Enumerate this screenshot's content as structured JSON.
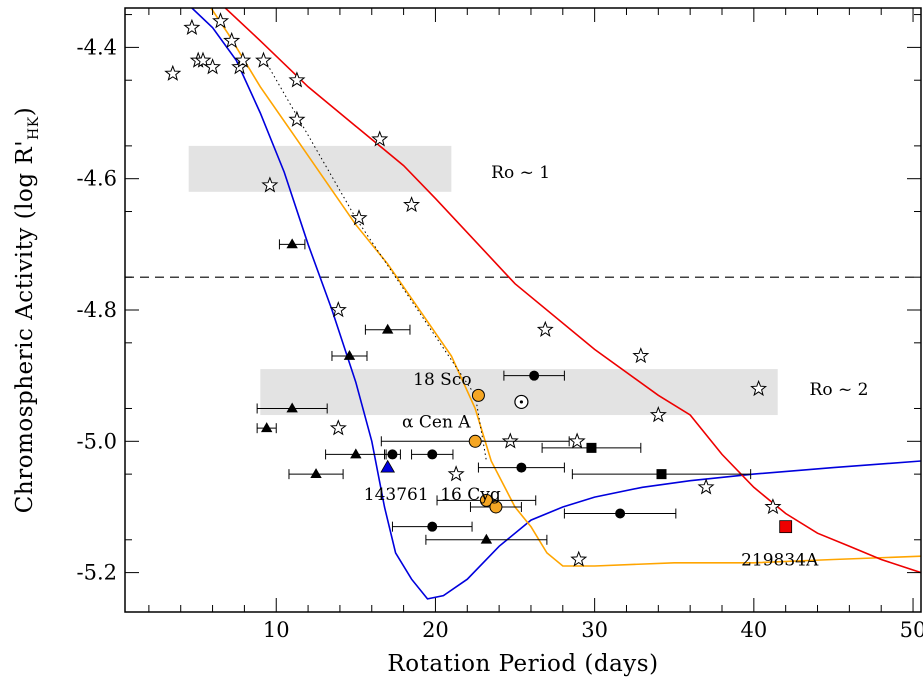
{
  "chart_data": {
    "type": "scatter",
    "xlabel": "Rotation Period (days)",
    "ylabel_main": "Chromospheric Activity (log R'",
    "ylabel_sub": "HK",
    "ylabel_close": ")",
    "xlim": [
      0.5,
      50.5
    ],
    "ylim": [
      -5.26,
      -4.34
    ],
    "x_ticks": [
      10,
      20,
      30,
      40,
      50
    ],
    "y_ticks": [
      -5.2,
      -5.0,
      -4.8,
      -4.6,
      -4.4
    ],
    "x_tick_labels": [
      "10",
      "20",
      "30",
      "40",
      "50"
    ],
    "y_tick_labels": [
      "-5.2",
      "-5.0",
      "-4.8",
      "-4.6",
      "-4.4"
    ],
    "dashed_line_y": -4.75,
    "colors": {
      "blue": "#0000dd",
      "orange": "#ffa500",
      "red": "#ee0000",
      "band": "#e3e3e3",
      "marker_orange": "#f5a623"
    },
    "bands": [
      {
        "label": "Ro ~ 1",
        "x": [
          4.5,
          21
        ],
        "y": [
          -4.62,
          -4.55
        ]
      },
      {
        "label": "Ro ~ 2",
        "x": [
          9,
          41.5
        ],
        "y": [
          -4.96,
          -4.89
        ]
      }
    ],
    "curves": [
      {
        "color": "blue",
        "points": [
          [
            4.7,
            -4.34
          ],
          [
            6,
            -4.37
          ],
          [
            7.5,
            -4.42
          ],
          [
            9,
            -4.5
          ],
          [
            10.5,
            -4.59
          ],
          [
            12,
            -4.7
          ],
          [
            13.5,
            -4.8
          ],
          [
            15,
            -4.91
          ],
          [
            16,
            -5.0
          ],
          [
            16.8,
            -5.1
          ],
          [
            17.5,
            -5.17
          ],
          [
            18.5,
            -5.21
          ],
          [
            19.5,
            -5.24
          ],
          [
            20.5,
            -5.235
          ],
          [
            22,
            -5.21
          ],
          [
            24,
            -5.16
          ],
          [
            26,
            -5.12
          ],
          [
            28,
            -5.1
          ],
          [
            30,
            -5.085
          ],
          [
            33,
            -5.07
          ],
          [
            36,
            -5.06
          ],
          [
            40,
            -5.05
          ],
          [
            45,
            -5.04
          ],
          [
            50.5,
            -5.03
          ]
        ]
      },
      {
        "color": "orange",
        "points": [
          [
            5.9,
            -4.34
          ],
          [
            7,
            -4.38
          ],
          [
            9,
            -4.46
          ],
          [
            11,
            -4.53
          ],
          [
            13,
            -4.6
          ],
          [
            15,
            -4.67
          ],
          [
            17,
            -4.73
          ],
          [
            19,
            -4.8
          ],
          [
            21,
            -4.87
          ],
          [
            22.5,
            -4.95
          ],
          [
            23.5,
            -5.03
          ],
          [
            25,
            -5.1
          ],
          [
            26,
            -5.13
          ],
          [
            27,
            -5.17
          ],
          [
            28,
            -5.19
          ],
          [
            30,
            -5.19
          ],
          [
            35,
            -5.185
          ],
          [
            40,
            -5.185
          ],
          [
            45,
            -5.18
          ],
          [
            50.5,
            -5.175
          ]
        ]
      },
      {
        "color": "red",
        "points": [
          [
            6.8,
            -4.34
          ],
          [
            9,
            -4.39
          ],
          [
            12,
            -4.46
          ],
          [
            15,
            -4.52
          ],
          [
            18,
            -4.58
          ],
          [
            20,
            -4.63
          ],
          [
            25,
            -4.76
          ],
          [
            30,
            -4.86
          ],
          [
            34,
            -4.93
          ],
          [
            36,
            -4.96
          ],
          [
            38,
            -5.02
          ],
          [
            40,
            -5.07
          ],
          [
            42,
            -5.11
          ],
          [
            44,
            -5.14
          ],
          [
            46,
            -5.16
          ],
          [
            48,
            -5.18
          ],
          [
            50.5,
            -5.2
          ]
        ]
      }
    ],
    "dotted_line": [
      [
        9.3,
        -4.42
      ],
      [
        15,
        -4.66
      ],
      [
        20,
        -4.84
      ],
      [
        22.5,
        -4.93
      ],
      [
        23.2,
        -5.03
      ]
    ],
    "stars": [
      [
        3.5,
        -4.44
      ],
      [
        4.7,
        -4.37
      ],
      [
        5.1,
        -4.42
      ],
      [
        5.4,
        -4.42
      ],
      [
        6,
        -4.43
      ],
      [
        6.5,
        -4.36
      ],
      [
        7.2,
        -4.39
      ],
      [
        7.7,
        -4.43
      ],
      [
        7.9,
        -4.42
      ],
      [
        9.2,
        -4.42
      ],
      [
        9.6,
        -4.61
      ],
      [
        11.3,
        -4.45
      ],
      [
        11.3,
        -4.51
      ],
      [
        13.9,
        -4.8
      ],
      [
        13.9,
        -4.98
      ],
      [
        15.2,
        -4.66
      ],
      [
        16.5,
        -4.54
      ],
      [
        18.5,
        -4.64
      ],
      [
        21.3,
        -5.05
      ],
      [
        24.7,
        -5.0
      ],
      [
        26.9,
        -4.83
      ],
      [
        28.9,
        -5.0
      ],
      [
        29,
        -5.18
      ],
      [
        32.9,
        -4.87
      ],
      [
        34,
        -4.96
      ],
      [
        37,
        -5.07
      ],
      [
        40.3,
        -4.92
      ],
      [
        41.2,
        -5.1
      ]
    ],
    "triangles": [
      {
        "x": 11,
        "y": -4.7,
        "xerr": [
          10.2,
          11.8
        ]
      },
      {
        "x": 17,
        "y": -4.83,
        "xerr": [
          15.6,
          18.4
        ]
      },
      {
        "x": 14.6,
        "y": -4.87,
        "xerr": [
          13.5,
          15.7
        ]
      },
      {
        "x": 11,
        "y": -4.95,
        "xerr": [
          8.8,
          13.2
        ]
      },
      {
        "x": 9.4,
        "y": -4.98,
        "xerr": [
          8.8,
          10
        ]
      },
      {
        "x": 15,
        "y": -5.02,
        "xerr": [
          13.1,
          16.9
        ]
      },
      {
        "x": 12.5,
        "y": -5.05,
        "xerr": [
          10.8,
          14.2
        ]
      },
      {
        "x": 23.2,
        "y": -5.15,
        "xerr": [
          19.4,
          27
        ]
      }
    ],
    "circles": [
      {
        "x": 26.2,
        "y": -4.9,
        "xerr": [
          24.3,
          28.1
        ]
      },
      {
        "x": 17.3,
        "y": -5.02,
        "xerr": [
          16.8,
          17.8
        ]
      },
      {
        "x": 19.8,
        "y": -5.02,
        "xerr": [
          18.5,
          21.1
        ]
      },
      {
        "x": 25.4,
        "y": -5.04,
        "xerr": [
          22.7,
          28.1
        ]
      },
      {
        "x": 31.6,
        "y": -5.11,
        "xerr": [
          28.1,
          35.1
        ]
      },
      {
        "x": 19.8,
        "y": -5.13,
        "xerr": [
          17.3,
          22.3
        ]
      }
    ],
    "squares": [
      {
        "x": 29.8,
        "y": -5.01,
        "xerr": [
          26.7,
          32.9
        ]
      },
      {
        "x": 34.2,
        "y": -5.05,
        "xerr": [
          28.6,
          39.8
        ]
      }
    ],
    "orange_points": [
      {
        "x": 22.7,
        "y": -4.93,
        "xerr": null
      },
      {
        "x": 22.5,
        "y": -5.0,
        "xerr": [
          16.6,
          28.4
        ]
      },
      {
        "x": 23.2,
        "y": -5.09,
        "xerr": [
          20.1,
          26.3
        ]
      },
      {
        "x": 23.8,
        "y": -5.1,
        "xerr": [
          22.2,
          25.4
        ]
      }
    ],
    "blue_triangle": {
      "x": 17,
      "y": -5.04
    },
    "red_square": {
      "x": 42,
      "y": -5.13
    },
    "sun": {
      "x": 25.4,
      "y": -4.94
    },
    "annotations": [
      {
        "text": "Ro ~ 1",
        "x": 23.5,
        "y": -4.59
      },
      {
        "text": "Ro ~ 2",
        "x": 43.5,
        "y": -4.92
      },
      {
        "text": "18 Sco",
        "x": 18.6,
        "y": -4.905
      },
      {
        "text": "α Cen A",
        "x": 17.9,
        "y": -4.97
      },
      {
        "text": "143761",
        "x": 15.5,
        "y": -5.08
      },
      {
        "text": "16 Cyg",
        "x": 20.3,
        "y": -5.08
      },
      {
        "text": "219834A",
        "x": 39.2,
        "y": -5.18
      }
    ]
  }
}
